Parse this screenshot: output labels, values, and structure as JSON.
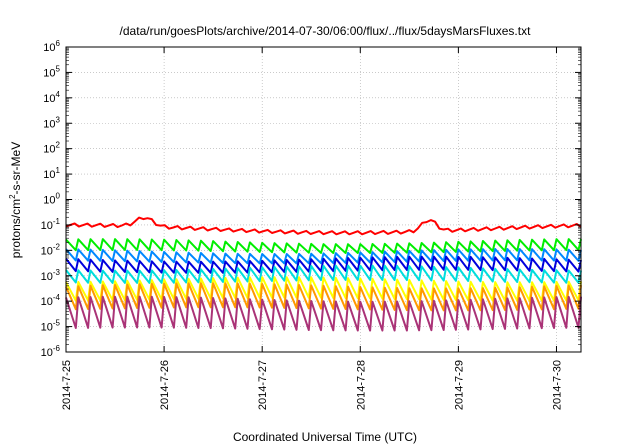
{
  "chart_data": {
    "type": "line",
    "title": "/data/run/goesPlots/archive/2014-07-30/06:00/flux/../flux/5daysMarsFluxes.txt",
    "xlabel": "Coordinated Universal Time (UTC)",
    "ylabel_parts": {
      "base": "protons/cm",
      "exp": "2",
      "rest": "-s-sr-MeV"
    },
    "y_scale": "log",
    "ylim_exp": [
      -6,
      6
    ],
    "y_ticks": [
      {
        "base": "10",
        "exp": "-6"
      },
      {
        "base": "10",
        "exp": "-5"
      },
      {
        "base": "10",
        "exp": "-4"
      },
      {
        "base": "10",
        "exp": "-3"
      },
      {
        "base": "10",
        "exp": "-2"
      },
      {
        "base": "10",
        "exp": "-1"
      },
      {
        "base": "10",
        "exp": "0"
      },
      {
        "base": "10",
        "exp": "1"
      },
      {
        "base": "10",
        "exp": "2"
      },
      {
        "base": "10",
        "exp": "3"
      },
      {
        "base": "10",
        "exp": "4"
      },
      {
        "base": "10",
        "exp": "5"
      },
      {
        "base": "10",
        "exp": "6"
      }
    ],
    "x_ticks": [
      "2014-7-25",
      "2014-7-26",
      "2014-7-27",
      "2014-7-28",
      "2014-7-29",
      "2014-7-30"
    ],
    "xlim": [
      "2014-07-25T00:00",
      "2014-07-30T06:00"
    ],
    "grid": true,
    "legend": "none",
    "series": [
      {
        "color": "#ff0000",
        "pattern": "slow",
        "peak": 0.11,
        "trough": 0.04
      },
      {
        "color": "#00ee00",
        "pattern": "sawtooth",
        "peak": 0.022,
        "trough": 0.009
      },
      {
        "color": "#0088ff",
        "pattern": "sawtooth",
        "peak": 0.009,
        "trough": 0.0035
      },
      {
        "color": "#0000dd",
        "pattern": "sawtooth",
        "peak": 0.0045,
        "trough": 0.0015
      },
      {
        "color": "#00dddd",
        "pattern": "sawtooth",
        "peak": 0.002,
        "trough": 0.0006
      },
      {
        "color": "#ffff00",
        "pattern": "sawtooth",
        "peak": 0.0007,
        "trough": 0.00012
      },
      {
        "color": "#ff9900",
        "pattern": "sawtooth",
        "peak": 0.0004,
        "trough": 5e-05
      },
      {
        "color": "#aa3377",
        "pattern": "sawtooth",
        "peak": 0.00012,
        "trough": 8e-06
      }
    ]
  }
}
